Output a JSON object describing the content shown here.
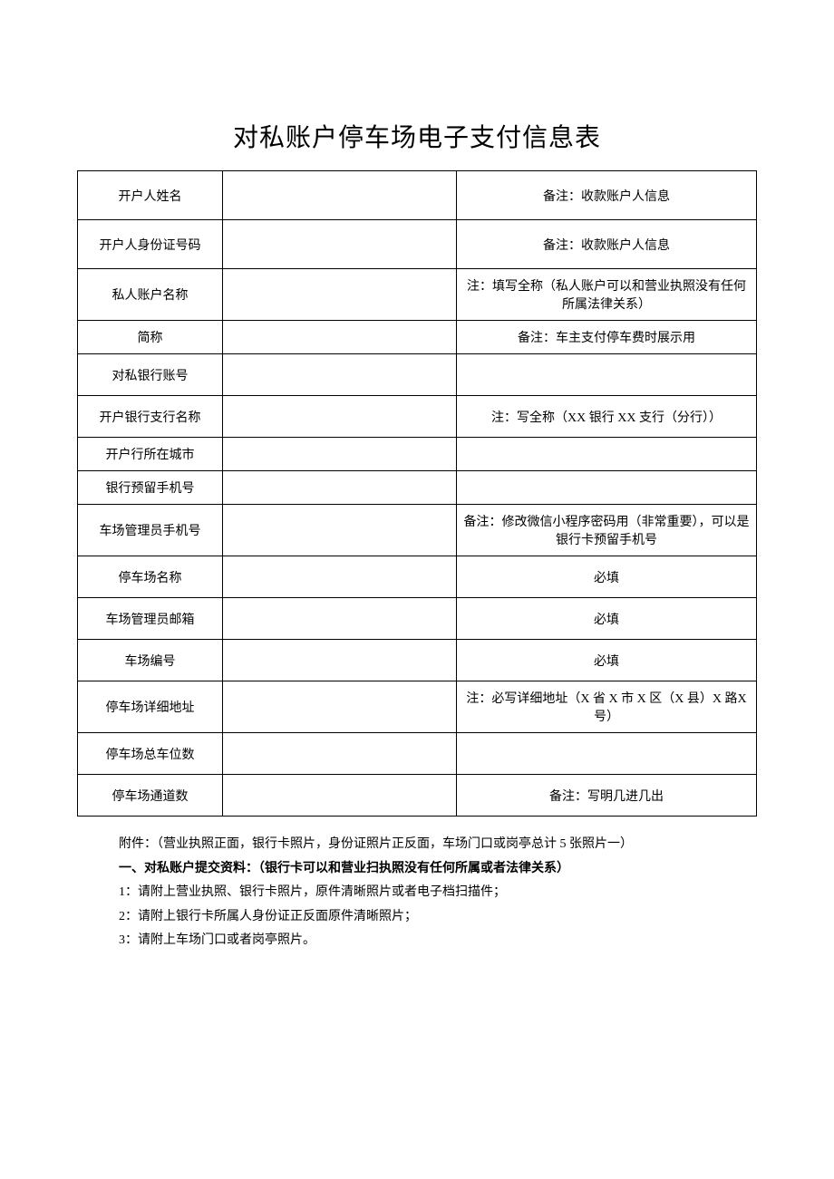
{
  "title": "对私账户停车场电子支付信息表",
  "table": {
    "rows": [
      {
        "label": "开户人姓名",
        "value": "",
        "note": "备注：收款账户人信息",
        "rowClass": "row-tall"
      },
      {
        "label": "开户人身份证号码",
        "value": "",
        "note": "备注：收款账户人信息",
        "rowClass": "row-tall"
      },
      {
        "label": "私人账户名称",
        "value": "",
        "note": "注：填写全称（私人账户可以和营业执照没有任何所属法律关系）",
        "rowClass": "row-med2"
      },
      {
        "label": "简称",
        "value": "",
        "note": "备注：车主支付停车费时展示用",
        "rowClass": "row-short"
      },
      {
        "label": "对私银行账号",
        "value": "",
        "note": "",
        "rowClass": "row-mid"
      },
      {
        "label": "开户银行支行名称",
        "value": "",
        "note": "注：写全称（XX 银行 XX 支行（分行））",
        "rowClass": "row-mid"
      },
      {
        "label": "开户行所在城市",
        "value": "",
        "note": "",
        "rowClass": "row-short"
      },
      {
        "label": "银行预留手机号",
        "value": "",
        "note": "",
        "rowClass": "row-short"
      },
      {
        "label": "车场管理员手机号",
        "value": "",
        "note": "备注：修改微信小程序密码用（非常重要），可以是银行卡预留手机号",
        "rowClass": "row-med2"
      },
      {
        "label": "停车场名称",
        "value": "",
        "note": "必填",
        "rowClass": "row-mid"
      },
      {
        "label": "车场管理员邮箱",
        "value": "",
        "note": "必填",
        "rowClass": "row-mid"
      },
      {
        "label": "车场编号",
        "value": "",
        "note": "必填",
        "rowClass": "row-mid"
      },
      {
        "label": "停车场详细地址",
        "value": "",
        "note": "注：必写详细地址（X 省 X 市 X 区（X 县）X 路X 号）",
        "rowClass": "row-med2"
      },
      {
        "label": "停车场总车位数",
        "value": "",
        "note": "",
        "rowClass": "row-mid"
      },
      {
        "label": "停车场通道数",
        "value": "",
        "note": "备注：写明几进几出",
        "rowClass": "row-mid"
      }
    ]
  },
  "notes": {
    "attachment": "附件：（营业执照正面，银行卡照片，身份证照片正反面，车场门口或岗亭总计 5 张照片一）",
    "heading": "一、对私账户提交资料：（银行卡可以和营业扫执照没有任何所属或者法律关系）",
    "items": [
      "1：请附上营业执照、银行卡照片，原件清晰照片或者电子档扫描件；",
      "2：请附上银行卡所属人身份证正反面原件清晰照片；",
      "3：请附上车场门口或者岗亭照片。"
    ]
  }
}
